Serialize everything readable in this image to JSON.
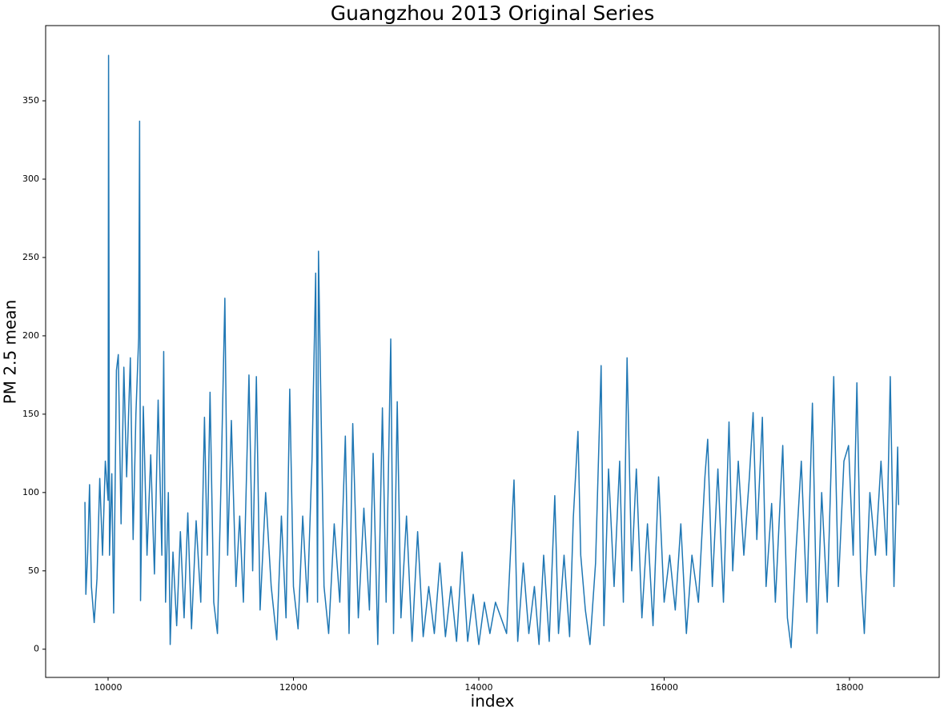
{
  "chart_data": {
    "type": "line",
    "title": "Guangzhou 2013 Original Series",
    "x_label": "index",
    "y_label": "PM 2.5 mean",
    "x": [
      9750,
      9760,
      9780,
      9800,
      9820,
      9850,
      9880,
      9910,
      9940,
      9970,
      10000,
      10005,
      10015,
      10040,
      10060,
      10090,
      10110,
      10140,
      10170,
      10200,
      10240,
      10270,
      10300,
      10330,
      10340,
      10350,
      10380,
      10420,
      10460,
      10500,
      10540,
      10580,
      10600,
      10620,
      10650,
      10670,
      10700,
      10740,
      10780,
      10820,
      10860,
      10900,
      10950,
      11000,
      11040,
      11070,
      11100,
      11140,
      11180,
      11220,
      11260,
      11290,
      11330,
      11380,
      11420,
      11460,
      11520,
      11560,
      11600,
      11640,
      11700,
      11760,
      11820,
      11870,
      11920,
      11960,
      12000,
      12050,
      12100,
      12150,
      12200,
      12240,
      12260,
      12270,
      12290,
      12330,
      12380,
      12440,
      12500,
      12560,
      12600,
      12640,
      12700,
      12760,
      12820,
      12860,
      12910,
      12960,
      13000,
      13050,
      13080,
      13120,
      13160,
      13220,
      13280,
      13340,
      13400,
      13460,
      13520,
      13580,
      13640,
      13700,
      13760,
      13820,
      13880,
      13940,
      14000,
      14060,
      14120,
      14180,
      14240,
      14300,
      14380,
      14420,
      14480,
      14540,
      14600,
      14650,
      14700,
      14760,
      14820,
      14860,
      14920,
      14980,
      15020,
      15070,
      15100,
      15150,
      15200,
      15260,
      15320,
      15350,
      15400,
      15460,
      15520,
      15560,
      15600,
      15650,
      15700,
      15760,
      15820,
      15880,
      15940,
      16000,
      16060,
      16120,
      16180,
      16240,
      16300,
      16370,
      16440,
      16470,
      16520,
      16580,
      16640,
      16700,
      16740,
      16800,
      16860,
      16920,
      16960,
      17000,
      17060,
      17100,
      17160,
      17200,
      17280,
      17330,
      17370,
      17420,
      17480,
      17540,
      17600,
      17650,
      17700,
      17760,
      17830,
      17880,
      17940,
      17990,
      18040,
      18080,
      18120,
      18160,
      18220,
      18280,
      18340,
      18400,
      18440,
      18480,
      18520,
      18530
    ],
    "series": [
      {
        "name": "PM 2.5 mean",
        "color": "#1f77b4",
        "values": [
          94,
          35,
          62,
          105,
          40,
          17,
          45,
          109,
          60,
          120,
          95,
          379,
          60,
          112,
          23,
          178,
          188,
          80,
          180,
          110,
          186,
          70,
          150,
          199,
          337,
          31,
          155,
          60,
          124,
          48,
          159,
          60,
          190,
          30,
          100,
          3,
          62,
          15,
          75,
          20,
          87,
          13,
          82,
          30,
          148,
          60,
          164,
          30,
          10,
          110,
          224,
          60,
          146,
          40,
          85,
          30,
          175,
          50,
          174,
          25,
          100,
          40,
          6,
          85,
          20,
          166,
          40,
          13,
          85,
          30,
          120,
          240,
          30,
          254,
          180,
          40,
          10,
          80,
          30,
          136,
          10,
          144,
          20,
          90,
          25,
          125,
          3,
          154,
          30,
          198,
          10,
          158,
          20,
          85,
          5,
          75,
          8,
          40,
          10,
          55,
          8,
          40,
          5,
          62,
          5,
          35,
          3,
          30,
          10,
          30,
          20,
          10,
          108,
          5,
          55,
          10,
          40,
          3,
          60,
          5,
          98,
          10,
          60,
          8,
          84,
          139,
          60,
          25,
          3,
          55,
          181,
          15,
          115,
          40,
          120,
          30,
          186,
          50,
          115,
          20,
          80,
          15,
          110,
          30,
          60,
          25,
          80,
          10,
          60,
          30,
          110,
          134,
          40,
          115,
          30,
          145,
          50,
          120,
          60,
          110,
          151,
          70,
          148,
          40,
          93,
          30,
          130,
          20,
          1,
          60,
          120,
          30,
          157,
          10,
          100,
          30,
          174,
          40,
          120,
          130,
          60,
          170,
          50,
          10,
          100,
          60,
          120,
          60,
          174,
          40,
          129,
          92
        ]
      }
    ],
    "xlim": [
      9326,
      18968
    ],
    "ylim": [
      -18,
      398
    ],
    "xticks": [
      10000,
      12000,
      14000,
      16000,
      18000
    ],
    "yticks": [
      0,
      50,
      100,
      150,
      200,
      250,
      300,
      350
    ]
  }
}
